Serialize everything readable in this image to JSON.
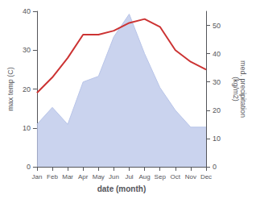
{
  "chart_data": {
    "type": "line",
    "categories": [
      "Jan",
      "Feb",
      "Mar",
      "Apr",
      "May",
      "Jun",
      "Jul",
      "Aug",
      "Sep",
      "Oct",
      "Nov",
      "Dec"
    ],
    "xlabel": "date (month)",
    "ylabel": "max temp (C)",
    "y2label": "med. precipitation\n(kg/m2)",
    "ylim": [
      0,
      40
    ],
    "yticks": [
      0,
      10,
      20,
      30,
      40
    ],
    "y2lim": [
      0,
      55
    ],
    "y2ticks": [
      0,
      10,
      20,
      30,
      40,
      50
    ],
    "grid": false,
    "series": [
      {
        "type": "area",
        "axis": "y2",
        "color": "#b8c4e8",
        "values": [
          15,
          21,
          15,
          30,
          32,
          46,
          54,
          40,
          28,
          20,
          14,
          14
        ]
      },
      {
        "type": "line",
        "color": "#cc3333",
        "values": [
          19,
          23,
          28,
          34,
          34,
          35,
          37,
          38,
          36,
          30,
          27,
          25
        ]
      }
    ]
  }
}
